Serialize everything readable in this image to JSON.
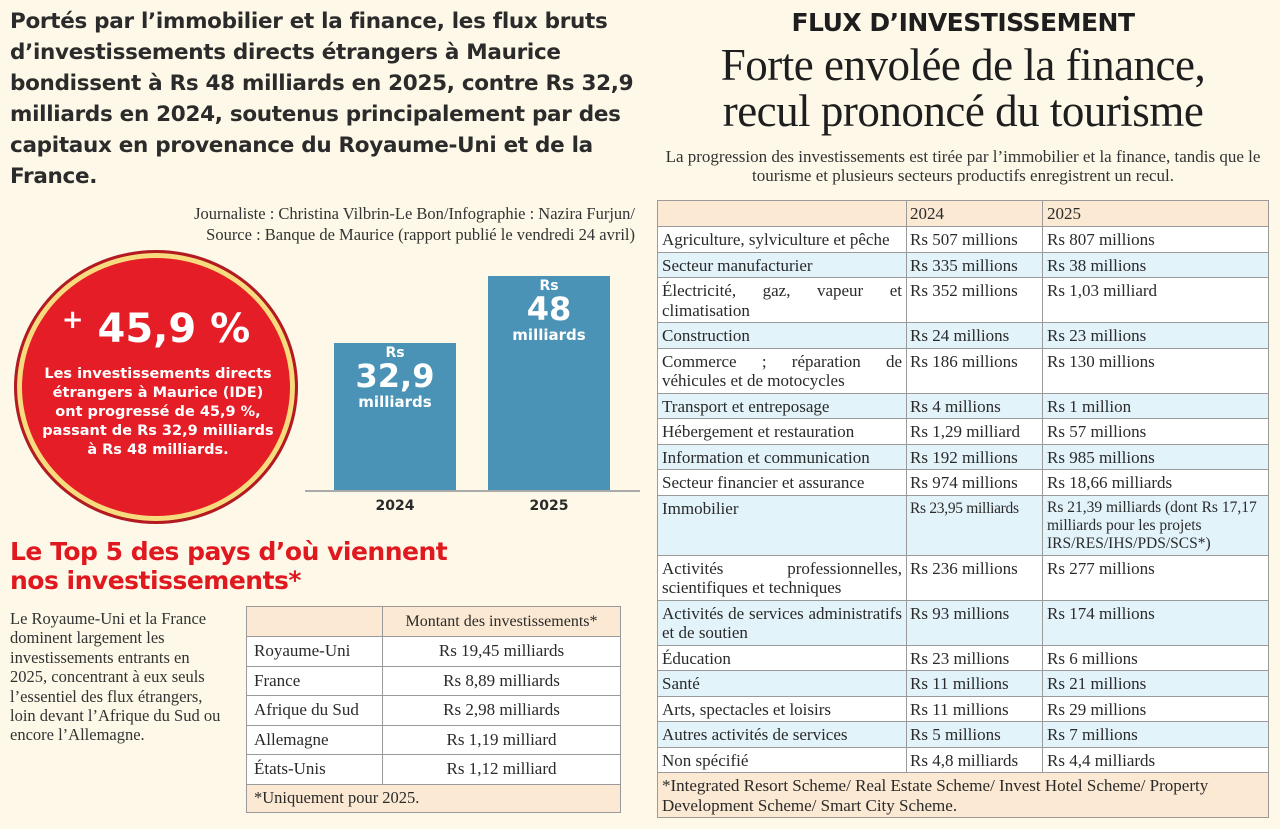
{
  "lede": "Portés par l’immobilier et la finance, les flux bruts d’investissements directs étrangers à Maurice bondissent à Rs 48 milliards en 2025, contre Rs 32,9 milliards en 2024, soutenus principalement par des capitaux en provenance du Royaume-Uni et de la France.",
  "credits": {
    "line1": "Journaliste : Christina Vilbrin-Le Bon/Infographie : Nazira Furjun/",
    "line2": "Source : Banque de Maurice (rapport publié le vendredi 24 avril)"
  },
  "highlight": {
    "sign": "+",
    "value": "45,9 %",
    "text": "Les investissements directs étrangers à Maurice (IDE) ont progressé de 45,9 %, passant de Rs 32,9 milliards à Rs 48 milliards.",
    "color": "#e51d26"
  },
  "chart_data": {
    "type": "bar",
    "categories": [
      "2024",
      "2025"
    ],
    "values": [
      32.9,
      48
    ],
    "labels": [
      {
        "prefix": "Rs",
        "value": "32,9",
        "unit": "milliards"
      },
      {
        "prefix": "Rs",
        "value": "48",
        "unit": "milliards"
      }
    ],
    "color": "#4b93b6"
  },
  "top5": {
    "title": "Le Top 5 des pays d’où viennent nos investissements*",
    "text": "Le Royaume-Uni et la France dominent largement les investissements entrants en 2025, concentrant à eux seuls l’essentiel des flux étrangers, loin devant l’Afrique du Sud ou encore l’Allemagne.",
    "header": [
      "",
      "Montant des investissements*"
    ],
    "rows": [
      {
        "country": "Royaume-Uni",
        "amount": "Rs 19,45 milliards"
      },
      {
        "country": "France",
        "amount": "Rs 8,89 milliards"
      },
      {
        "country": "Afrique du Sud",
        "amount": "Rs 2,98 milliards"
      },
      {
        "country": "Allemagne",
        "amount": "Rs 1,19 milliard"
      },
      {
        "country": "États-Unis",
        "amount": "Rs 1,12 milliard"
      }
    ],
    "footnote": "*Uniquement pour 2025."
  },
  "article": {
    "kicker": "FLUX D’INVESTISSEMENT",
    "headline_line1": "Forte envolée de la finance,",
    "headline_line2": "recul prononcé du tourisme",
    "standfirst": "La progression des investissements est tirée par l’immobilier et la finance, tandis que le tourisme et plusieurs secteurs productifs enregistrent un recul."
  },
  "sectors": {
    "header": [
      "",
      "2024",
      "2025"
    ],
    "rows": [
      {
        "sector": "Agriculture, sylviculture et pêche",
        "y2024": "Rs 507 millions",
        "y2025": "Rs 807 millions"
      },
      {
        "sector": "Secteur manufacturier",
        "y2024": "Rs 335 millions",
        "y2025": "Rs 38 millions"
      },
      {
        "sector": "Électricité, gaz, vapeur et climatisation",
        "y2024": "Rs 352 millions",
        "y2025": "Rs 1,03 milliard"
      },
      {
        "sector": "Construction",
        "y2024": "Rs 24 millions",
        "y2025": "Rs 23 millions"
      },
      {
        "sector": "Commerce ; réparation de véhicules et de motocycles",
        "y2024": "Rs 186 millions",
        "y2025": "Rs 130 millions"
      },
      {
        "sector": "Transport et entreposage",
        "y2024": "Rs 4 millions",
        "y2025": "Rs 1 million"
      },
      {
        "sector": "Hébergement et restauration",
        "y2024": "Rs 1,29 milliard",
        "y2025": "Rs 57 millions"
      },
      {
        "sector": "Information et communication",
        "y2024": "Rs 192 millions",
        "y2025": "Rs 985 millions"
      },
      {
        "sector": "Secteur financier et assurance",
        "y2024": "Rs 974 millions",
        "y2025": "Rs 18,66 milliards"
      },
      {
        "sector": "Immobilier",
        "y2024": "Rs 23,95 milliards",
        "y2025": "Rs 21,39 milliards (dont Rs 17,17 milliards pour les projets IRS/RES/IHS/PDS/SCS*)"
      },
      {
        "sector": "Activités professionnelles, scientifiques et techniques",
        "y2024": "Rs 236 millions",
        "y2025": "Rs 277 millions"
      },
      {
        "sector": "Activités de services administratifs et de soutien",
        "y2024": "Rs 93 millions",
        "y2025": "Rs 174 millions"
      },
      {
        "sector": "Éducation",
        "y2024": "Rs 23 millions",
        "y2025": "Rs 6 millions"
      },
      {
        "sector": "Santé",
        "y2024": "Rs 11 millions",
        "y2025": "Rs 21 millions"
      },
      {
        "sector": "Arts, spectacles et loisirs",
        "y2024": "Rs 11 millions",
        "y2025": "Rs 29 millions"
      },
      {
        "sector": "Autres activités de services",
        "y2024": "Rs 5 millions",
        "y2025": "Rs 7 millions"
      },
      {
        "sector": "Non spécifié",
        "y2024": "Rs 4,8 milliards",
        "y2025": "Rs 4,4 milliards"
      }
    ],
    "footnote": "*Integrated Resort Scheme/ Real Estate Scheme/ Invest Hotel Scheme/ Property Development Scheme/ Smart City Scheme."
  }
}
